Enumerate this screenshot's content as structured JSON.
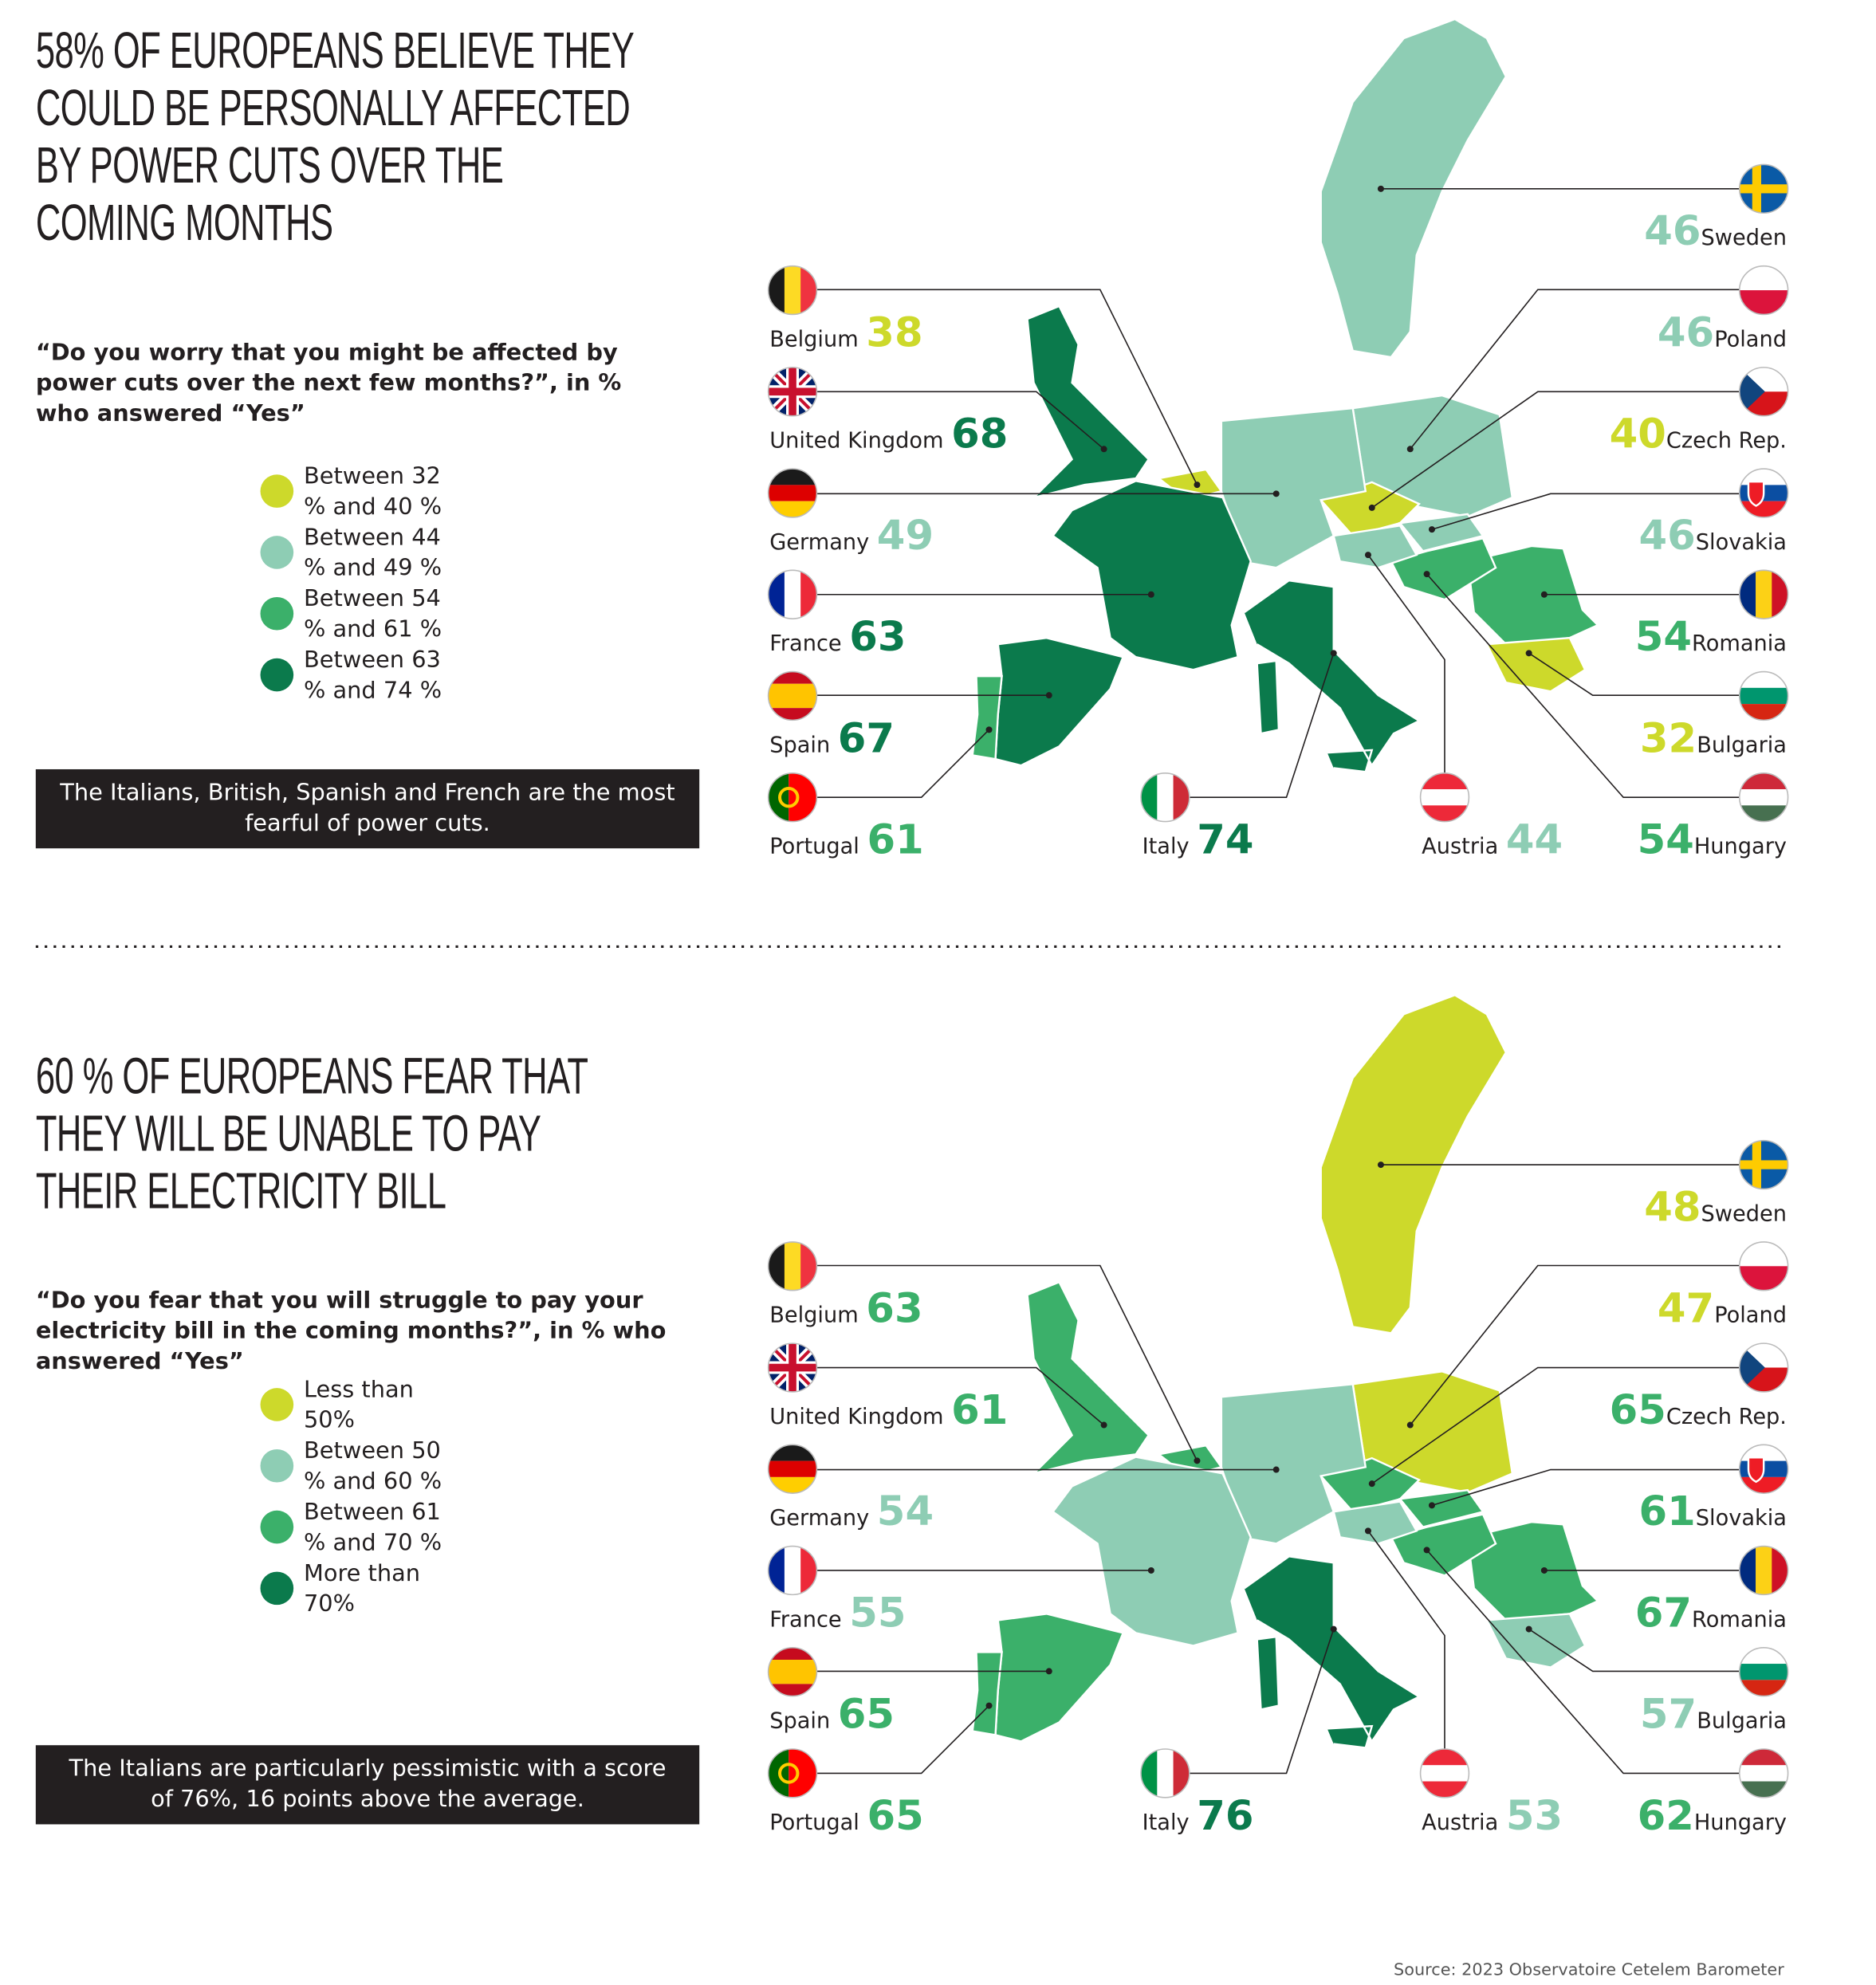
{
  "sections": [
    {
      "title": "58% OF EUROPEANS BELIEVE THEY COULD BE PERSONALLY AFFECTED BY POWER CUTS OVER THE COMING MONTHS",
      "question": "“Do you worry that you might be affected by power cuts over the next few months?”, in % who answered “Yes”",
      "legend": [
        {
          "label": "Between 32 % and 40 %",
          "color": "#cdd92b"
        },
        {
          "label": "Between 44 % and 49 %",
          "color": "#8ecdb4"
        },
        {
          "label": "Between 54 % and 61 %",
          "color": "#3bb06a"
        },
        {
          "label": "Between 63 % and 74 %",
          "color": "#0b7a4c"
        }
      ],
      "note": "The Italians, British, Spanish and French are the most fearful of power cuts.",
      "countries": [
        {
          "name": "Sweden",
          "value": 46,
          "color": "#8ecdb4"
        },
        {
          "name": "Poland",
          "value": 46,
          "color": "#8ecdb4"
        },
        {
          "name": "Czech Rep.",
          "value": 40,
          "color": "#cdd92b"
        },
        {
          "name": "Slovakia",
          "value": 46,
          "color": "#8ecdb4"
        },
        {
          "name": "Romania",
          "value": 54,
          "color": "#3bb06a"
        },
        {
          "name": "Bulgaria",
          "value": 32,
          "color": "#cdd92b"
        },
        {
          "name": "Hungary",
          "value": 54,
          "color": "#3bb06a"
        },
        {
          "name": "Belgium",
          "value": 38,
          "color": "#cdd92b"
        },
        {
          "name": "United Kingdom",
          "value": 68,
          "color": "#0b7a4c"
        },
        {
          "name": "Germany",
          "value": 49,
          "color": "#8ecdb4"
        },
        {
          "name": "France",
          "value": 63,
          "color": "#0b7a4c"
        },
        {
          "name": "Spain",
          "value": 67,
          "color": "#0b7a4c"
        },
        {
          "name": "Portugal",
          "value": 61,
          "color": "#3bb06a"
        },
        {
          "name": "Italy",
          "value": 74,
          "color": "#0b7a4c"
        },
        {
          "name": "Austria",
          "value": 44,
          "color": "#8ecdb4"
        }
      ]
    },
    {
      "title": "60 %  OF EUROPEANS FEAR THAT THEY WILL BE UNABLE TO PAY THEIR ELECTRICITY BILL",
      "question": "“Do you fear that you will struggle to pay your electricity bill in the coming months?”, in % who answered “Yes”",
      "legend": [
        {
          "label": "Less than 50%",
          "color": "#cdd92b"
        },
        {
          "label": "Between 50 % and 60 %",
          "color": "#8ecdb4"
        },
        {
          "label": "Between 61 % and 70 %",
          "color": "#3bb06a"
        },
        {
          "label": "More than 70%",
          "color": "#0b7a4c"
        }
      ],
      "note": "The Italians are particularly pessimistic with a score of 76%, 16 points above the average.",
      "countries": [
        {
          "name": "Sweden",
          "value": 48,
          "color": "#cdd92b"
        },
        {
          "name": "Poland",
          "value": 47,
          "color": "#cdd92b"
        },
        {
          "name": "Czech Rep.",
          "value": 65,
          "color": "#3bb06a"
        },
        {
          "name": "Slovakia",
          "value": 61,
          "color": "#3bb06a"
        },
        {
          "name": "Romania",
          "value": 67,
          "color": "#3bb06a"
        },
        {
          "name": "Bulgaria",
          "value": 57,
          "color": "#8ecdb4"
        },
        {
          "name": "Hungary",
          "value": 62,
          "color": "#3bb06a"
        },
        {
          "name": "Belgium",
          "value": 63,
          "color": "#3bb06a"
        },
        {
          "name": "United Kingdom",
          "value": 61,
          "color": "#3bb06a"
        },
        {
          "name": "Germany",
          "value": 54,
          "color": "#8ecdb4"
        },
        {
          "name": "France",
          "value": 55,
          "color": "#8ecdb4"
        },
        {
          "name": "Spain",
          "value": 65,
          "color": "#3bb06a"
        },
        {
          "name": "Portugal",
          "value": 65,
          "color": "#3bb06a"
        },
        {
          "name": "Italy",
          "value": 76,
          "color": "#0b7a4c"
        },
        {
          "name": "Austria",
          "value": 53,
          "color": "#8ecdb4"
        }
      ]
    }
  ],
  "source": "Source: 2023 Observatoire Cetelem Barometer"
}
